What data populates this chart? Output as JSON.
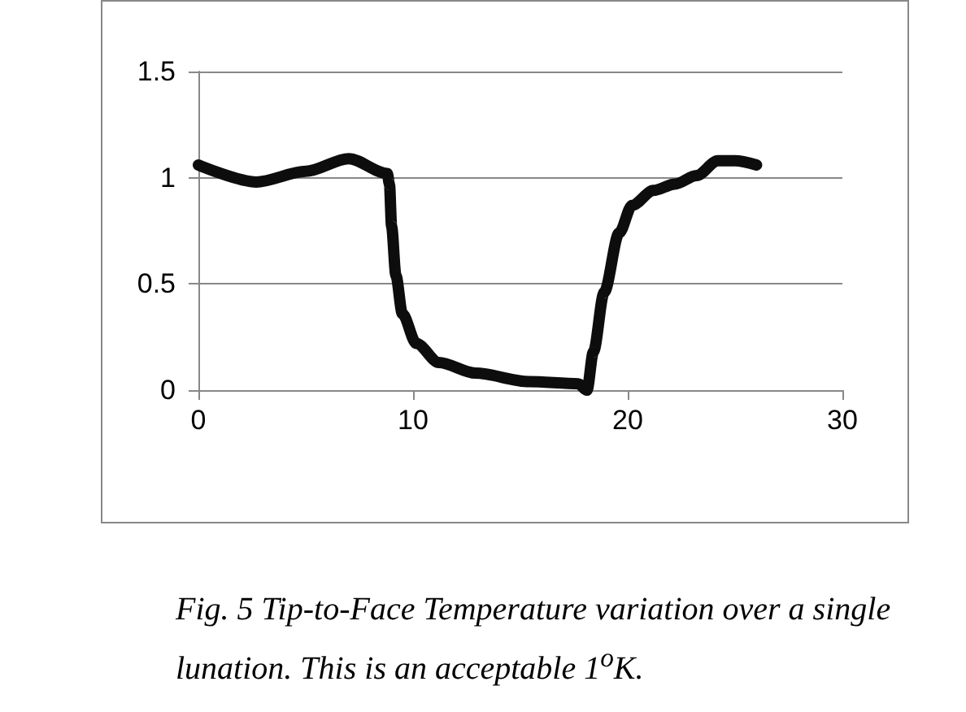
{
  "chart_data": {
    "type": "line",
    "x": [
      0,
      2.7,
      5,
      7,
      8.8,
      8.9,
      9.0,
      9.2,
      9.5,
      10.15,
      11.2,
      12.9,
      15.4,
      17.7,
      18.1,
      18.4,
      18.9,
      19.6,
      20.2,
      21.2,
      22.2,
      23.2,
      24.2,
      25,
      26
    ],
    "series": [
      {
        "color": "#0d0d0d",
        "values": [
          1.06,
          0.98,
          1.03,
          1.09,
          1.02,
          0.97,
          0.77,
          0.54,
          0.36,
          0.22,
          0.13,
          0.08,
          0.04,
          0.03,
          0,
          0.18,
          0.46,
          0.74,
          0.87,
          0.94,
          0.97,
          1.01,
          1.08,
          1.08,
          1.06
        ]
      }
    ],
    "xlim": [
      0,
      30
    ],
    "xticks": [
      0,
      10,
      20,
      30
    ],
    "ylim": [
      0,
      1.5
    ],
    "yticks": [
      0,
      0.5,
      1,
      1.5
    ],
    "grid": "y",
    "line_style": "solid",
    "annotations": [
      "Fig. 5 Tip-to-Face Temperature variation over a single lunation. This is an acceptable 1$^{o}$K."
    ]
  }
}
